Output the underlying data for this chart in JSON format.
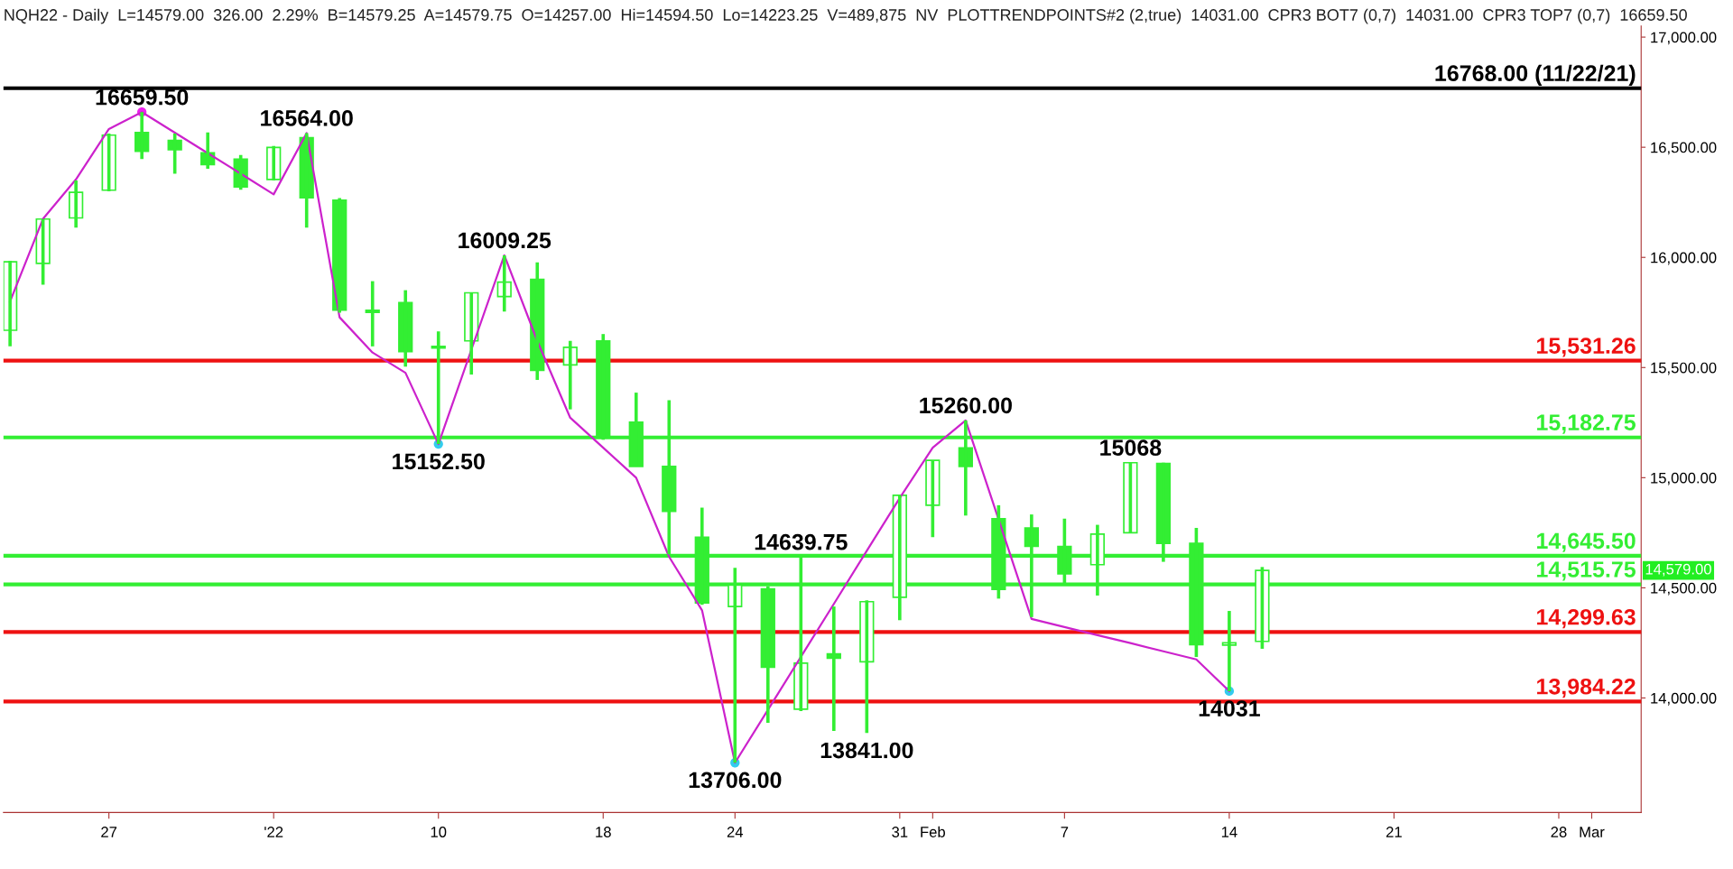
{
  "chart_data": {
    "type": "candlestick",
    "title": "NQH22 - Daily  L=14579.00  326.00  2.29%  B=14579.25  A=14579.75  O=14257.00  Hi=14594.50  Lo=14223.25  V=489,875  NV  PLOTTRENDPOINTS#2 (2,true)  14031.00  CPR3 BOT7 (0,7)  14031.00  CPR3 TOP7 (0,7)  16659.50",
    "categories": [
      null,
      null,
      null,
      "27",
      null,
      null,
      null,
      null,
      "'22",
      null,
      null,
      null,
      null,
      "10",
      null,
      null,
      null,
      null,
      "18",
      null,
      null,
      null,
      "24",
      null,
      null,
      null,
      null,
      "31",
      "Feb",
      null,
      null,
      null,
      "7",
      null,
      null,
      null,
      null,
      "14",
      null,
      null,
      null,
      null,
      "21",
      null,
      null,
      null,
      null,
      "28",
      "Mar",
      null
    ],
    "color": "#33ee33",
    "ohlc": [
      [
        15669,
        15985,
        15596,
        15980
      ],
      [
        15973,
        16174,
        15876,
        16174
      ],
      [
        16179,
        16349,
        16135,
        16295
      ],
      [
        16305,
        16562,
        16300,
        16555
      ],
      [
        16567,
        16659.5,
        16446,
        16482
      ],
      [
        16531,
        16562,
        16380,
        16489
      ],
      [
        16475,
        16567,
        16402,
        16421
      ],
      [
        16446,
        16465,
        16307,
        16320
      ],
      [
        16354,
        16506,
        16349,
        16499
      ],
      [
        16543,
        16564,
        16135,
        16271
      ],
      [
        16260,
        16269,
        15749,
        15761
      ],
      [
        15760,
        15892,
        15596,
        15750
      ],
      [
        15795,
        15851,
        15504,
        15572
      ],
      [
        15589,
        15664,
        15152.5,
        15596
      ],
      [
        15621,
        15839,
        15468,
        15839
      ],
      [
        15822,
        16009.25,
        15754,
        15888
      ],
      [
        15900,
        15977,
        15444,
        15487
      ],
      [
        15512,
        15621,
        15310,
        15592
      ],
      [
        15621,
        15652,
        15172,
        15191
      ],
      [
        15252,
        15386,
        15051,
        15051
      ],
      [
        15051,
        15352,
        14652,
        14847
      ],
      [
        14730,
        14864,
        14423,
        14431
      ],
      [
        14415,
        14591,
        13706,
        14512
      ],
      [
        14495,
        14507,
        13887,
        14139
      ],
      [
        13949,
        14639.75,
        13940,
        14158
      ],
      [
        14200,
        14415,
        13850,
        14180
      ],
      [
        14164,
        14443,
        13841,
        14437
      ],
      [
        14457,
        14920,
        14353,
        14920
      ],
      [
        14875,
        15079,
        14730,
        15079
      ],
      [
        15135,
        15260,
        14828,
        15051
      ],
      [
        14814,
        14875,
        14451,
        14493
      ],
      [
        14772,
        14833,
        14367,
        14688
      ],
      [
        14688,
        14814,
        14512,
        14563
      ],
      [
        14605,
        14786,
        14465,
        14744
      ],
      [
        14750,
        15068,
        14750,
        15068
      ],
      [
        15065,
        15068,
        14618,
        14702
      ],
      [
        14702,
        14772,
        14186,
        14242
      ],
      [
        14240,
        14395,
        14031,
        14250
      ],
      [
        14257,
        14594.5,
        14223.25,
        14579
      ],
      null,
      null,
      null,
      null,
      null,
      null,
      null,
      null,
      null,
      null,
      null
    ],
    "series": [
      {
        "type": "line",
        "color": "#cc22cc",
        "values": [
          15800,
          16175,
          16354,
          16583,
          16659.5,
          16566,
          16473,
          16380,
          16286,
          16564,
          15728,
          15568,
          15476,
          15152.5,
          15581,
          16009.25,
          15621,
          15272,
          15136,
          15000,
          14641,
          14398,
          13706,
          13946,
          14187,
          14427,
          14668,
          14908,
          15136,
          15260,
          14810,
          14359,
          14322,
          14285,
          14249,
          14212,
          14175,
          14031,
          null,
          null,
          null,
          null,
          null,
          null,
          null,
          null,
          null,
          null,
          null,
          null
        ]
      },
      {
        "type": "scatter",
        "colors": [
          null,
          null,
          null,
          null,
          "#ee22ee",
          null,
          null,
          null,
          null,
          null,
          null,
          null,
          null,
          "#33ccee",
          null,
          null,
          null,
          null,
          null,
          null,
          null,
          null,
          "#33ccee",
          null,
          null,
          null,
          null,
          null,
          null,
          null,
          null,
          null,
          null,
          null,
          null,
          null,
          null,
          "#33ccee",
          null,
          null,
          null,
          null,
          null,
          null,
          null,
          null,
          null,
          null,
          null,
          null
        ],
        "values": [
          null,
          null,
          null,
          null,
          16659.5,
          null,
          null,
          null,
          null,
          null,
          null,
          null,
          null,
          15152.5,
          null,
          null,
          null,
          null,
          null,
          null,
          null,
          null,
          13706,
          null,
          null,
          null,
          null,
          null,
          null,
          null,
          null,
          null,
          null,
          null,
          null,
          null,
          null,
          14031,
          null,
          null,
          null,
          null,
          null,
          null,
          null,
          null,
          null,
          null,
          null,
          null
        ]
      }
    ],
    "ylim": [
      13480,
      17050
    ],
    "yticks": [
      {
        "value": 14000,
        "label": "14,000.00"
      },
      {
        "value": 14500,
        "label": "14,500.00"
      },
      {
        "value": 15000,
        "label": "15,000.00"
      },
      {
        "value": 15500,
        "label": "15,500.00"
      },
      {
        "value": 16000,
        "label": "16,000.00"
      },
      {
        "value": 16500,
        "label": "16,500.00"
      },
      {
        "value": 17000,
        "label": "17,000.00"
      }
    ],
    "grid": false,
    "ref_lines": [
      {
        "axis": "y",
        "value": 16768,
        "label": "16768.00 (11/22/21)",
        "color": "#000000"
      },
      {
        "axis": "y",
        "value": 15531.26,
        "label": "15,531.26",
        "color": "#ee1111"
      },
      {
        "axis": "y",
        "value": 15182.75,
        "label": "15,182.75",
        "color": "#33ee33"
      },
      {
        "axis": "y",
        "value": 14645.5,
        "label": "14,645.50",
        "color": "#33ee33"
      },
      {
        "axis": "y",
        "value": 14515.75,
        "label": "14,515.75",
        "color": "#33ee33"
      },
      {
        "axis": "y",
        "value": 14299.63,
        "label": "14,299.63",
        "color": "#ee1111"
      },
      {
        "axis": "y",
        "value": 13984.22,
        "label": "13,984.22",
        "color": "#ee1111"
      }
    ],
    "annotations": [
      {
        "text": "16659.50",
        "y": 16659.5
      },
      {
        "text": "16564.00",
        "y": 16564
      },
      {
        "text": "16009.25",
        "y": 16009.25
      },
      {
        "text": "15152.50",
        "y": 15152.5
      },
      {
        "text": "15260.00",
        "y": 15260
      },
      {
        "text": "15068",
        "y": 15068
      },
      {
        "text": "14639.75",
        "y": 14639.75
      },
      {
        "text": "13841.00",
        "y": 13841
      },
      {
        "text": "13706.00",
        "y": 13706
      },
      {
        "text": "14031",
        "y": 14031
      },
      "14,579.00"
    ]
  }
}
